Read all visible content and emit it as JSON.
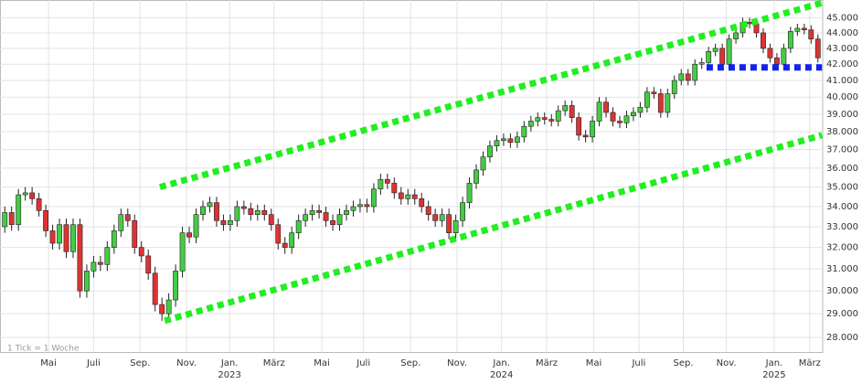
{
  "chart_data": {
    "type": "candlestick",
    "annotation": "1 Tick = 1 Woche",
    "log_scale": true,
    "grid": true,
    "up_color": "#44cc44",
    "down_color": "#dd3333",
    "ylim": [
      27400,
      46200
    ],
    "xlim": [
      -0.7,
      119.7
    ],
    "yticks": [
      {
        "value": 28000,
        "label": "28.000"
      },
      {
        "value": 29000,
        "label": "29.000"
      },
      {
        "value": 30000,
        "label": "30.000"
      },
      {
        "value": 31000,
        "label": "31.000"
      },
      {
        "value": 32000,
        "label": "32.000"
      },
      {
        "value": 33000,
        "label": "33.000"
      },
      {
        "value": 34000,
        "label": "34.000"
      },
      {
        "value": 35000,
        "label": "35.000"
      },
      {
        "value": 36000,
        "label": "36.000"
      },
      {
        "value": 37000,
        "label": "37.000"
      },
      {
        "value": 38000,
        "label": "38.000"
      },
      {
        "value": 39000,
        "label": "39.000"
      },
      {
        "value": 40000,
        "label": "40.000"
      },
      {
        "value": 41000,
        "label": "41.000"
      },
      {
        "value": 42000,
        "label": "42.000"
      },
      {
        "value": 43000,
        "label": "43.000"
      },
      {
        "value": 44000,
        "label": "44.000"
      },
      {
        "value": 45000,
        "label": "45.000"
      }
    ],
    "xticks": [
      {
        "value": 6.4,
        "label": "Mai"
      },
      {
        "value": 13.0,
        "label": "Juli"
      },
      {
        "value": 19.8,
        "label": "Sep."
      },
      {
        "value": 26.6,
        "label": "Nov."
      },
      {
        "value": 32.9,
        "label": "Jan.",
        "year": "2023"
      },
      {
        "value": 39.4,
        "label": "März"
      },
      {
        "value": 46.4,
        "label": "Mai"
      },
      {
        "value": 52.5,
        "label": "Juli"
      },
      {
        "value": 59.4,
        "label": "Sep."
      },
      {
        "value": 66.2,
        "label": "Nov."
      },
      {
        "value": 72.7,
        "label": "Jan.",
        "year": "2024"
      },
      {
        "value": 79.3,
        "label": "März"
      },
      {
        "value": 86.2,
        "label": "Mai"
      },
      {
        "value": 92.8,
        "label": "Juli"
      },
      {
        "value": 99.3,
        "label": "Sep."
      },
      {
        "value": 105.6,
        "label": "Nov."
      },
      {
        "value": 112.6,
        "label": "Jan.",
        "year": "2025"
      },
      {
        "value": 117.8,
        "label": "März"
      }
    ],
    "open": [
      33000,
      33700,
      33100,
      34600,
      34700,
      34400,
      33800,
      32800,
      32200,
      33100,
      31800,
      33100,
      30000,
      30900,
      31300,
      31200,
      32000,
      32800,
      33600,
      33300,
      32000,
      31600,
      30800,
      29400,
      29000,
      29600,
      30900,
      32700,
      32500,
      33600,
      34000,
      34200,
      33300,
      33100,
      33300,
      34000,
      33900,
      33600,
      33800,
      33600,
      33100,
      32200,
      32000,
      32700,
      33300,
      33600,
      33800,
      33700,
      33300,
      33100,
      33600,
      33800,
      34000,
      34100,
      34000,
      34900,
      35400,
      35200,
      34700,
      34400,
      34600,
      34400,
      34000,
      33600,
      33300,
      33600,
      32700,
      33300,
      34200,
      35200,
      35900,
      36600,
      37200,
      37500,
      37600,
      37400,
      37700,
      38300,
      38600,
      38800,
      38700,
      38600,
      39200,
      39500,
      38800,
      37800,
      37700,
      38600,
      39700,
      39100,
      38600,
      38500,
      38900,
      39100,
      39400,
      40300,
      40200,
      39100,
      40200,
      41000,
      41400,
      41000,
      42000,
      42100,
      42800,
      43000,
      42000,
      43600,
      44000,
      44700,
      44600,
      44000,
      43000,
      42400,
      42000,
      43000,
      44100,
      44300,
      44200,
      43600
    ],
    "high": [
      34000,
      34000,
      34900,
      35000,
      35000,
      34700,
      34100,
      33100,
      33400,
      33400,
      33400,
      33400,
      31200,
      31600,
      31600,
      32300,
      33100,
      33900,
      33900,
      33600,
      32300,
      31900,
      31100,
      29700,
      29900,
      31200,
      33000,
      33000,
      33900,
      34300,
      34500,
      34500,
      33600,
      33600,
      34300,
      34300,
      34200,
      34100,
      34100,
      33900,
      33400,
      32500,
      33000,
      33600,
      33900,
      34100,
      34100,
      34000,
      33600,
      33900,
      34100,
      34300,
      34400,
      34400,
      35200,
      35700,
      35700,
      35500,
      35000,
      34900,
      34900,
      34700,
      34300,
      33900,
      33900,
      33900,
      33600,
      34500,
      35500,
      36200,
      36900,
      37500,
      37800,
      37900,
      37900,
      38000,
      38600,
      38900,
      39100,
      39100,
      39000,
      39500,
      39800,
      39800,
      39100,
      38100,
      38900,
      40000,
      40000,
      39400,
      38900,
      39200,
      39400,
      39700,
      40600,
      40600,
      40500,
      40500,
      41300,
      41700,
      41700,
      42300,
      42400,
      43100,
      43300,
      43300,
      43900,
      44300,
      45000,
      45000,
      44900,
      44300,
      43300,
      42700,
      43300,
      44400,
      44600,
      44600,
      44500,
      43900
    ],
    "low": [
      32700,
      32800,
      32800,
      34300,
      34100,
      33500,
      32500,
      31900,
      31900,
      31500,
      31500,
      29700,
      29700,
      30600,
      30900,
      30900,
      31700,
      32500,
      33000,
      31700,
      31300,
      30500,
      29100,
      28700,
      28700,
      29300,
      30600,
      32200,
      32200,
      33300,
      33700,
      33000,
      32800,
      32800,
      33000,
      33600,
      33300,
      33300,
      33300,
      32800,
      31900,
      31700,
      31700,
      32400,
      33000,
      33300,
      33400,
      33000,
      32800,
      32800,
      33300,
      33500,
      33700,
      33700,
      33700,
      34600,
      34900,
      34400,
      34100,
      34100,
      34100,
      33700,
      33300,
      33000,
      33000,
      32400,
      32400,
      33000,
      33900,
      34900,
      35600,
      36300,
      36900,
      37200,
      37100,
      37100,
      37400,
      38000,
      38300,
      38400,
      38300,
      38300,
      38900,
      38500,
      37500,
      37400,
      37400,
      38300,
      38800,
      38300,
      38200,
      38200,
      38600,
      38800,
      39100,
      39900,
      38800,
      38800,
      39900,
      40700,
      40700,
      40700,
      41700,
      41800,
      42500,
      41700,
      41700,
      43300,
      43700,
      44300,
      43700,
      42700,
      42100,
      41700,
      41700,
      42700,
      43800,
      43900,
      43300,
      42100
    ],
    "close": [
      33700,
      33100,
      34600,
      34700,
      34400,
      33800,
      32800,
      32200,
      33100,
      31800,
      33100,
      30000,
      30900,
      31300,
      31200,
      32000,
      32800,
      33600,
      33300,
      32000,
      31600,
      30800,
      29400,
      29000,
      29600,
      30900,
      32700,
      32500,
      33600,
      34000,
      34200,
      33300,
      33100,
      33300,
      34000,
      33900,
      33600,
      33800,
      33600,
      33100,
      32200,
      32000,
      32700,
      33300,
      33600,
      33800,
      33700,
      33300,
      33100,
      33600,
      33800,
      34000,
      34100,
      34000,
      34900,
      35400,
      35200,
      34700,
      34400,
      34600,
      34400,
      34000,
      33600,
      33300,
      33600,
      32700,
      33300,
      34200,
      35200,
      35900,
      36600,
      37200,
      37500,
      37600,
      37400,
      37700,
      38300,
      38600,
      38800,
      38700,
      38600,
      39200,
      39500,
      38800,
      37800,
      37700,
      38600,
      39700,
      39100,
      38600,
      38500,
      38900,
      39100,
      39400,
      40300,
      40200,
      39100,
      40200,
      41000,
      41400,
      41000,
      42000,
      42100,
      42800,
      43000,
      42000,
      43600,
      44000,
      44700,
      44600,
      44000,
      43000,
      42400,
      42000,
      43000,
      44100,
      44300,
      44200,
      43600,
      42400
    ],
    "lines": [
      {
        "x1": 22.7,
        "y1": 35000,
        "x2": 119.6,
        "y2": 46000,
        "color": "#22ee22"
      },
      {
        "x1": 23.4,
        "y1": 28700,
        "x2": 119.6,
        "y2": 37800,
        "color": "#22ee22"
      },
      {
        "x1": 102.7,
        "y1": 41800,
        "x2": 119.6,
        "y2": 41800,
        "color": "#1122ee"
      }
    ]
  }
}
